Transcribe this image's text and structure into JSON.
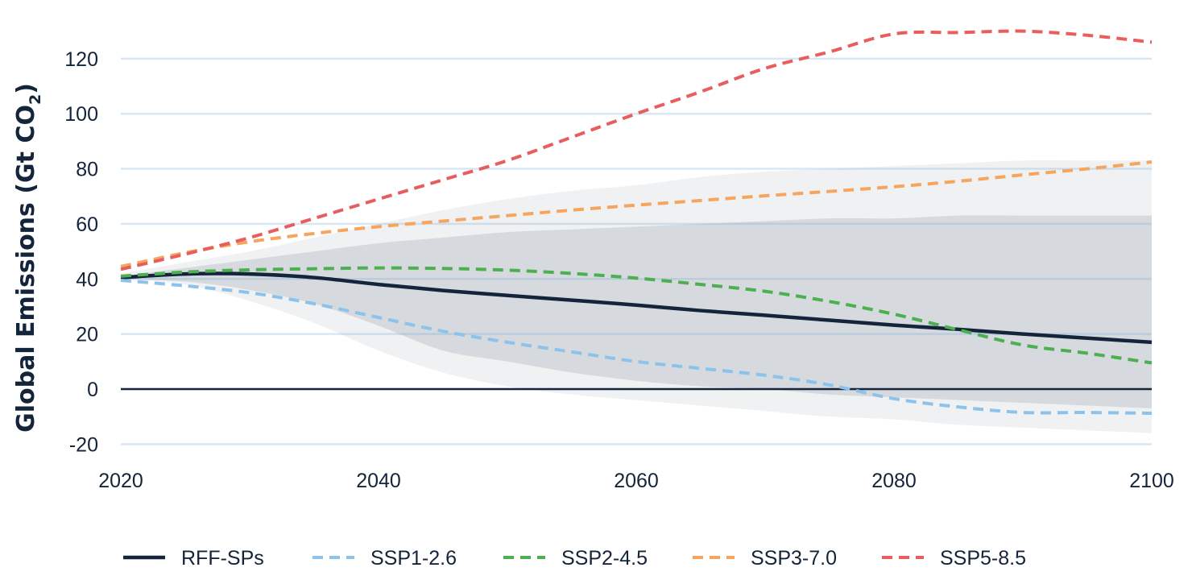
{
  "chart_data": {
    "type": "line",
    "title": "",
    "xlabel": "",
    "ylabel": "Global Emissions (Gt CO",
    "ylabel_subscript": "2",
    "ylabel_suffix": ")",
    "xlim": [
      2020,
      2100
    ],
    "ylim": [
      -24,
      134
    ],
    "x_ticks": [
      2020,
      2040,
      2060,
      2080,
      2100
    ],
    "y_ticks": [
      -20,
      0,
      20,
      40,
      60,
      80,
      100,
      120
    ],
    "grid": "horizontal",
    "legend_position": "bottom",
    "bands": [
      {
        "label": "outer",
        "color": "#f0f1f2",
        "x": [
          2020,
          2025,
          2030,
          2035,
          2040,
          2045,
          2050,
          2055,
          2060,
          2065,
          2070,
          2075,
          2080,
          2085,
          2090,
          2095,
          2100
        ],
        "upper": [
          42,
          46,
          50,
          55,
          60,
          65,
          69,
          72,
          74,
          77,
          79,
          80,
          81,
          82,
          83,
          83,
          83
        ],
        "lower": [
          40,
          38,
          32,
          24,
          14,
          6,
          1,
          -2,
          -4,
          -6,
          -8,
          -10,
          -11,
          -13,
          -14,
          -15,
          -16
        ]
      },
      {
        "label": "inner",
        "color": "#d6dade",
        "x": [
          2020,
          2025,
          2030,
          2035,
          2040,
          2045,
          2050,
          2055,
          2060,
          2065,
          2070,
          2075,
          2080,
          2085,
          2090,
          2095,
          2100
        ],
        "upper": [
          41,
          44,
          47,
          50,
          53,
          55,
          57,
          58,
          59,
          60,
          61,
          62,
          62,
          63,
          63,
          63,
          63
        ],
        "lower": [
          40,
          39,
          36,
          31,
          23,
          14,
          10,
          6,
          3,
          1,
          0,
          -2,
          -3,
          -4,
          -5,
          -6,
          -7
        ]
      }
    ],
    "zero_line_color": "#14243a",
    "series": [
      {
        "name": "RFF-SPs",
        "color": "#14243a",
        "dash": "solid",
        "x": [
          2020,
          2025,
          2030,
          2035,
          2040,
          2045,
          2050,
          2055,
          2060,
          2065,
          2070,
          2075,
          2080,
          2085,
          2090,
          2095,
          2100
        ],
        "values": [
          40.5,
          41.8,
          41.8,
          40.5,
          38,
          35.8,
          34,
          32.3,
          30.5,
          28.5,
          26.8,
          25,
          23.2,
          21.7,
          20,
          18.5,
          17
        ]
      },
      {
        "name": "SSP1-2.6",
        "color": "#8dc3ea",
        "dash": "dashed",
        "x": [
          2020,
          2025,
          2030,
          2035,
          2040,
          2045,
          2050,
          2055,
          2060,
          2065,
          2070,
          2075,
          2080,
          2085,
          2090,
          2095,
          2100
        ],
        "values": [
          39.5,
          37.5,
          35,
          31,
          26,
          21,
          17,
          13.5,
          10,
          7.5,
          5,
          1.5,
          -3.5,
          -6.5,
          -8.5,
          -8.5,
          -8.8
        ]
      },
      {
        "name": "SSP2-4.5",
        "color": "#4caf50",
        "dash": "dashed",
        "x": [
          2020,
          2025,
          2030,
          2035,
          2040,
          2045,
          2050,
          2055,
          2060,
          2065,
          2070,
          2075,
          2080,
          2085,
          2090,
          2095,
          2100
        ],
        "values": [
          41,
          42.5,
          43.3,
          43.7,
          44,
          43.8,
          43.2,
          42,
          40.3,
          38,
          35.5,
          31.8,
          27.2,
          21.5,
          16,
          13,
          9.5
        ]
      },
      {
        "name": "SSP3-7.0",
        "color": "#f6a55f",
        "dash": "dashed",
        "x": [
          2020,
          2025,
          2030,
          2035,
          2040,
          2045,
          2050,
          2055,
          2060,
          2065,
          2070,
          2075,
          2080,
          2085,
          2090,
          2095,
          2100
        ],
        "values": [
          44.5,
          49.5,
          53.5,
          56.5,
          59,
          61,
          63,
          65,
          66.8,
          68.5,
          70.2,
          71.8,
          73.5,
          75.5,
          77.8,
          80,
          82.5
        ]
      },
      {
        "name": "SSP5-8.5",
        "color": "#e85d5d",
        "dash": "dashed",
        "x": [
          2020,
          2025,
          2030,
          2035,
          2040,
          2045,
          2050,
          2055,
          2060,
          2065,
          2070,
          2075,
          2080,
          2085,
          2090,
          2095,
          2100
        ],
        "values": [
          43.5,
          49,
          55,
          62,
          69,
          76,
          83,
          91.5,
          100,
          108,
          116.5,
          122.5,
          129,
          129.5,
          130,
          128.5,
          126
        ]
      }
    ]
  }
}
